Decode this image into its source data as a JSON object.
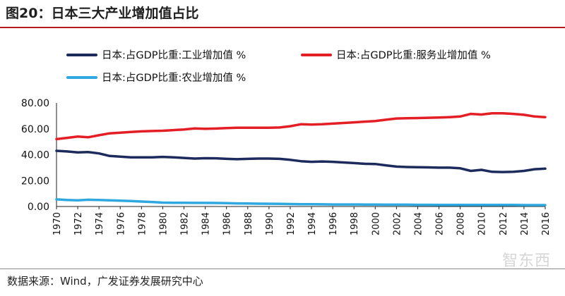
{
  "title": "图20：日本三大产业增加值占比",
  "source": "数据来源：Wind，广发证券发展研究中心",
  "watermark": "智东西",
  "chart_data": {
    "type": "line",
    "x": [
      1970,
      1971,
      1972,
      1973,
      1974,
      1975,
      1976,
      1977,
      1978,
      1979,
      1980,
      1981,
      1982,
      1983,
      1984,
      1985,
      1986,
      1987,
      1988,
      1989,
      1990,
      1991,
      1992,
      1993,
      1994,
      1995,
      1996,
      1997,
      1998,
      1999,
      2000,
      2001,
      2002,
      2003,
      2004,
      2005,
      2006,
      2007,
      2008,
      2009,
      2010,
      2011,
      2012,
      2013,
      2014,
      2015,
      2016
    ],
    "x_tick_labels": [
      "1970",
      "1972",
      "1974",
      "1976",
      "1978",
      "1980",
      "1982",
      "1984",
      "1986",
      "1988",
      "1990",
      "1992",
      "1994",
      "1996",
      "1998",
      "2000",
      "2002",
      "2004",
      "2006",
      "2008",
      "2010",
      "2012",
      "2014",
      "2016"
    ],
    "y_tick_labels": [
      "0.00",
      "20.00",
      "40.00",
      "60.00",
      "80.00"
    ],
    "ylim": [
      0,
      80
    ],
    "grid": false,
    "legend_position": "top",
    "series": [
      {
        "name": "日本:占GDP比重:工业增加值 %",
        "color": "#1c2a5c",
        "values": [
          43.0,
          42.5,
          41.8,
          42.0,
          41.0,
          39.0,
          38.5,
          38.0,
          38.0,
          38.0,
          38.3,
          38.0,
          37.5,
          37.0,
          37.3,
          37.2,
          36.8,
          36.5,
          36.8,
          37.0,
          37.0,
          36.8,
          36.0,
          35.0,
          34.5,
          34.8,
          34.5,
          34.0,
          33.5,
          33.0,
          32.8,
          31.8,
          30.8,
          30.5,
          30.3,
          30.2,
          30.0,
          30.0,
          29.5,
          27.5,
          28.3,
          26.8,
          26.6,
          26.8,
          27.5,
          28.8,
          29.2
        ]
      },
      {
        "name": "日本:占GDP比重:服务业增加值 %",
        "color": "#e31e24",
        "values": [
          52.0,
          53.0,
          54.0,
          53.5,
          55.0,
          56.5,
          57.0,
          57.5,
          58.0,
          58.3,
          58.5,
          59.0,
          59.5,
          60.3,
          60.0,
          60.2,
          60.5,
          60.8,
          60.8,
          60.8,
          60.8,
          61.0,
          62.0,
          63.5,
          63.3,
          63.5,
          64.0,
          64.5,
          65.0,
          65.5,
          66.0,
          67.0,
          68.0,
          68.2,
          68.3,
          68.5,
          68.7,
          69.0,
          69.5,
          71.5,
          71.0,
          72.0,
          72.0,
          71.5,
          70.8,
          69.5,
          69.0
        ]
      },
      {
        "name": "日本:占GDP比重:农业增加值 %",
        "color": "#2ea8df",
        "values": [
          5.5,
          5.0,
          4.8,
          5.2,
          5.0,
          4.8,
          4.5,
          4.2,
          3.8,
          3.5,
          3.0,
          2.9,
          2.9,
          2.8,
          2.8,
          2.7,
          2.6,
          2.4,
          2.3,
          2.2,
          2.1,
          2.0,
          1.9,
          1.8,
          1.8,
          1.7,
          1.6,
          1.6,
          1.6,
          1.5,
          1.5,
          1.4,
          1.4,
          1.4,
          1.3,
          1.3,
          1.2,
          1.2,
          1.2,
          1.2,
          1.2,
          1.2,
          1.2,
          1.2,
          1.1,
          1.1,
          1.1
        ]
      }
    ]
  }
}
